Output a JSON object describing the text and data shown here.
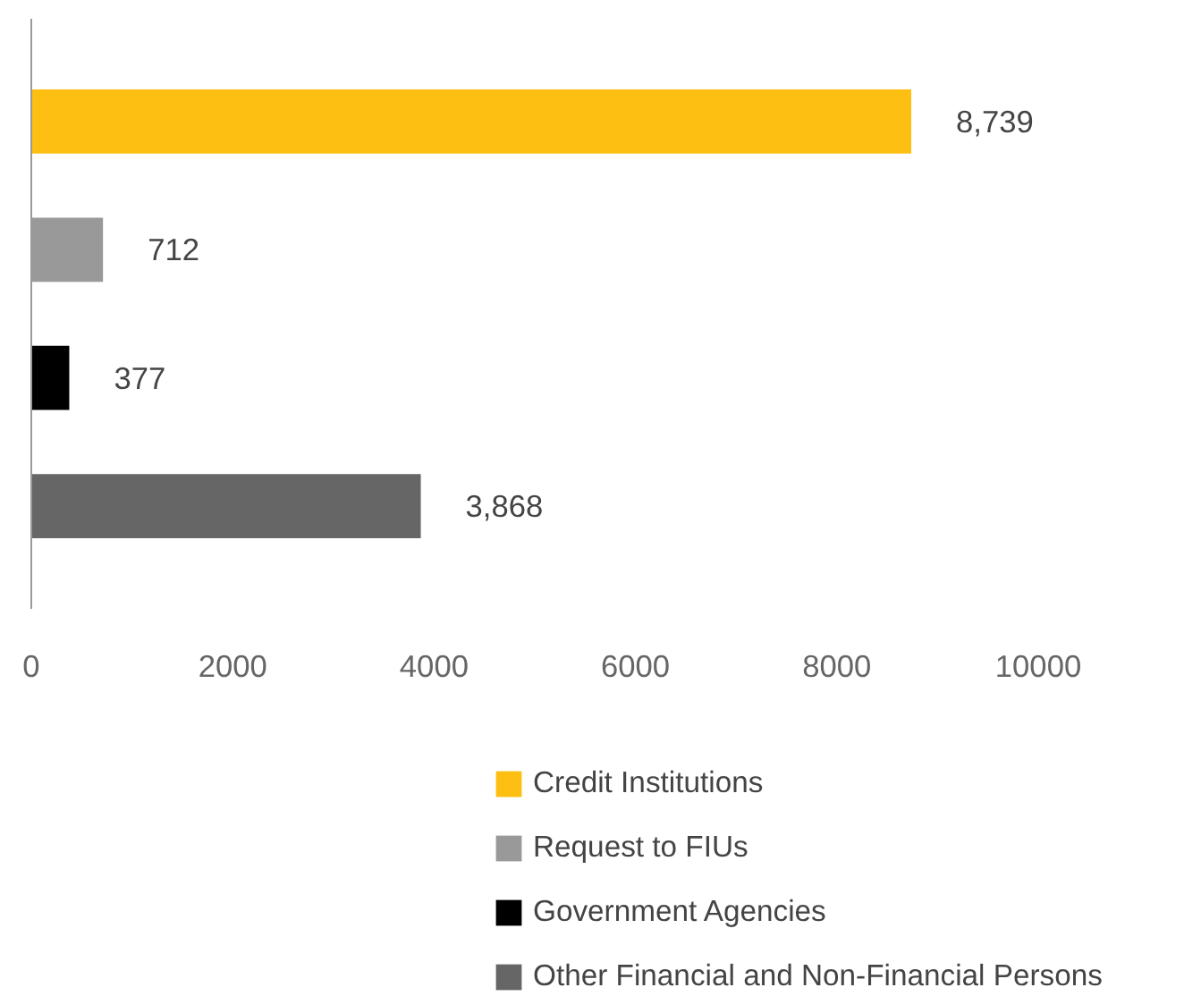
{
  "chart_data": {
    "type": "bar",
    "orientation": "horizontal",
    "categories": [
      null
    ],
    "series": [
      {
        "name": "Credit Institutions",
        "color": "#fdbf11",
        "values": [
          8739
        ],
        "value_labels": [
          "8,739"
        ]
      },
      {
        "name": "Request to FIUs",
        "color": "#999999",
        "values": [
          712
        ],
        "value_labels": [
          "712"
        ]
      },
      {
        "name": "Government Agencies",
        "color": "#000000",
        "values": [
          377
        ],
        "value_labels": [
          "377"
        ]
      },
      {
        "name": "Other Financial and Non-Financial Persons",
        "color": "#666666",
        "values": [
          3868
        ],
        "value_labels": [
          "3,868"
        ]
      }
    ],
    "xlim": [
      0,
      10000
    ],
    "xticks": [
      0,
      2000,
      4000,
      6000,
      8000,
      10000
    ],
    "legend": "bottom",
    "grid": false
  }
}
